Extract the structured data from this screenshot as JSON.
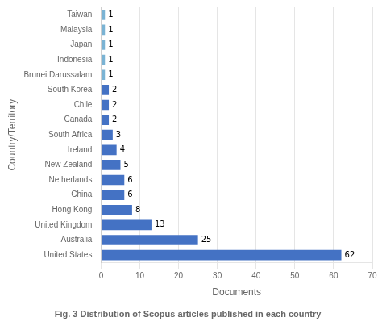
{
  "chart_data": {
    "type": "bar",
    "orientation": "horizontal",
    "title": "Fig. 3 Distribution of Scopus articles published in each country",
    "xlabel": "Documents",
    "ylabel": "Country/Territory",
    "categories": [
      "United States",
      "Australia",
      "United Kingdom",
      "Hong Kong",
      "China",
      "Netherlands",
      "New Zealand",
      "Ireland",
      "South Africa",
      "Canada",
      "Chile",
      "South Korea",
      "Brunei Darussalam",
      "Indonesia",
      "Japan",
      "Malaysia",
      "Taiwan"
    ],
    "values": [
      62,
      25,
      13,
      8,
      6,
      6,
      5,
      4,
      3,
      2,
      2,
      2,
      1,
      1,
      1,
      1,
      1
    ],
    "colors": [
      "#4472c4",
      "#4472c4",
      "#4472c4",
      "#4472c4",
      "#4472c4",
      "#4472c4",
      "#4472c4",
      "#4472c4",
      "#4472c4",
      "#4472c4",
      "#4472c4",
      "#4472c4",
      "#7ab3d4",
      "#7ab3d4",
      "#7ab3d4",
      "#7ab3d4",
      "#7ab3d4"
    ],
    "xlim": [
      0,
      70
    ],
    "xticks": [
      0,
      10,
      20,
      30,
      40,
      50,
      60,
      70
    ],
    "grid": "x",
    "data_labels": true
  }
}
